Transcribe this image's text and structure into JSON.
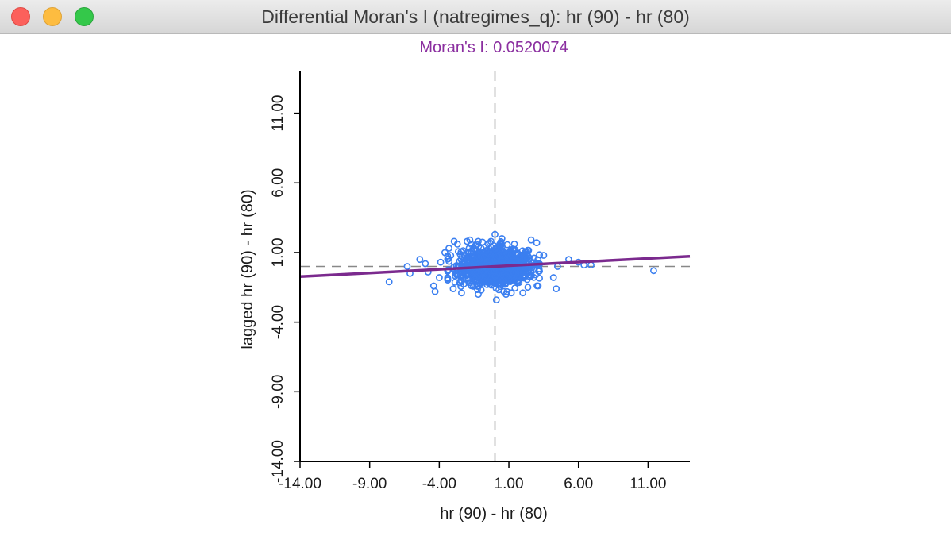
{
  "window": {
    "title": "Differential Moran's I (natregimes_q): hr (90) - hr (80)",
    "buttons": [
      "close",
      "minimize",
      "zoom"
    ]
  },
  "colors": {
    "points": "#3b7ff0",
    "regression_line": "#7b2a8e",
    "reference_lines": "#888888",
    "subtitle": "#8b2fa0"
  },
  "chart_data": {
    "type": "scatter",
    "title": "Moran's I: 0.0520074",
    "xlabel": "hr (90) - hr (80)",
    "ylabel": "lagged hr (90) - hr (80)",
    "xlim": [
      -14,
      14
    ],
    "ylim": [
      -14,
      14
    ],
    "xticks": [
      -14,
      -9,
      -4,
      1,
      6,
      11
    ],
    "yticks": [
      -14,
      -9,
      -4,
      1,
      6,
      11
    ],
    "xtick_labels": [
      "-14.00",
      "-9.00",
      "-4.00",
      "1.00",
      "6.00",
      "11.00"
    ],
    "ytick_labels": [
      "-14.00",
      "-9.00",
      "-4.00",
      "1.00",
      "6.00",
      "11.00"
    ],
    "reference_lines": {
      "x": 0,
      "y": 0
    },
    "regression": {
      "slope": 0.0520074,
      "intercept": 0
    },
    "point_count_visible": 1150,
    "points": [
      [
        -7.6,
        -1.1
      ],
      [
        -6.3,
        0.0
      ],
      [
        -6.1,
        -0.5
      ],
      [
        -5.4,
        0.5
      ],
      [
        -5.0,
        0.2
      ],
      [
        -4.8,
        -0.4
      ],
      [
        -4.4,
        -1.4
      ],
      [
        -4.3,
        -1.8
      ],
      [
        -4.0,
        -0.8
      ],
      [
        -3.6,
        1.0
      ],
      [
        -3.9,
        0.3
      ],
      [
        -3.0,
        -1.6
      ],
      [
        -2.7,
        1.6
      ],
      [
        -2.4,
        -1.9
      ],
      [
        -1.8,
        1.9
      ],
      [
        -1.2,
        -2.0
      ],
      [
        -1.2,
        1.8
      ],
      [
        0.0,
        2.3
      ],
      [
        0.1,
        -2.4
      ],
      [
        0.5,
        2.0
      ],
      [
        0.8,
        -2.0
      ],
      [
        1.4,
        1.6
      ],
      [
        2.0,
        -1.9
      ],
      [
        2.6,
        1.9
      ],
      [
        3.0,
        1.7
      ],
      [
        3.1,
        -1.4
      ],
      [
        3.5,
        0.8
      ],
      [
        4.2,
        -0.8
      ],
      [
        4.4,
        -1.6
      ],
      [
        4.5,
        0.0
      ],
      [
        5.3,
        0.5
      ],
      [
        6.0,
        0.3
      ],
      [
        6.4,
        0.1
      ],
      [
        6.9,
        0.1
      ],
      [
        11.4,
        -0.3
      ]
    ]
  }
}
